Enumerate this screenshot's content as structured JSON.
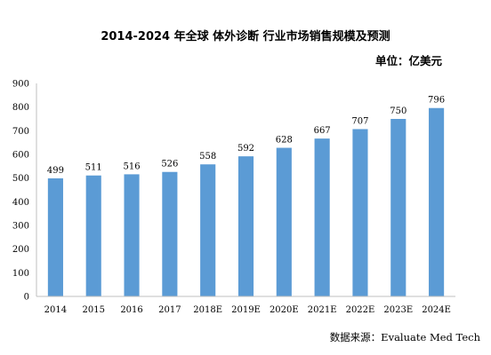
{
  "chart_data": {
    "type": "bar",
    "title": "2014-2024 年全球 体外诊断 行业市场销售规模及预测",
    "unit": "单位：亿美元",
    "categories": [
      "2014",
      "2015",
      "2016",
      "2017",
      "2018E",
      "2019E",
      "2020E",
      "2021E",
      "2022E",
      "2023E",
      "2024E"
    ],
    "values": [
      499,
      511,
      516,
      526,
      558,
      592,
      628,
      667,
      707,
      750,
      796
    ],
    "data_labels": [
      "499",
      "511",
      "516",
      "526",
      "558",
      "592",
      "628",
      "667",
      "707",
      "750",
      "796"
    ],
    "ylim": [
      0,
      900
    ],
    "yticks": [
      0,
      100,
      200,
      300,
      400,
      500,
      600,
      700,
      800,
      900
    ],
    "ytick_labels": [
      "0",
      "100",
      "200",
      "300",
      "400",
      "500",
      "600",
      "700",
      "800",
      "900"
    ],
    "grid": false,
    "bar_color": "#5b9bd5",
    "source": "数据来源：Evaluate Med Tech"
  }
}
